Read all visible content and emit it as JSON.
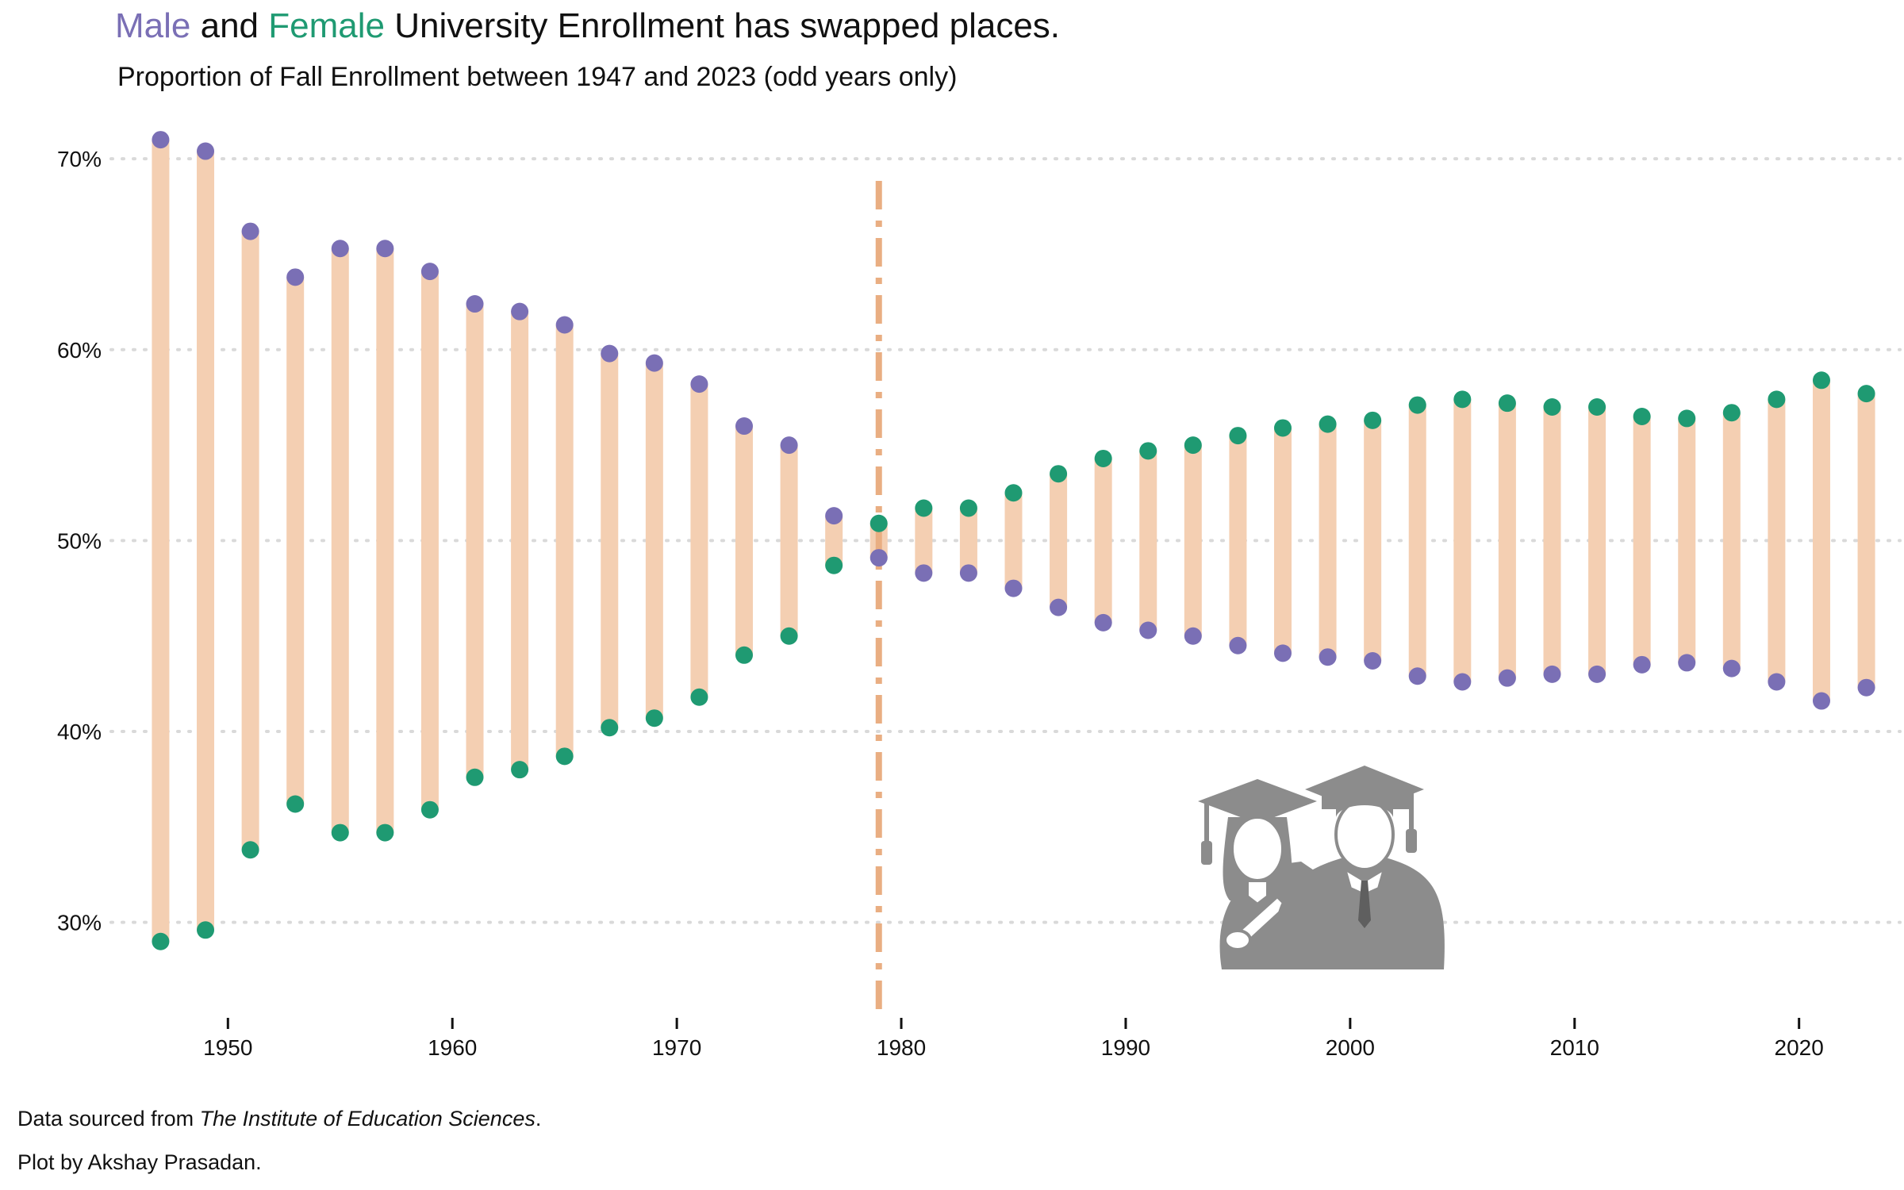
{
  "title": {
    "male_word": "Male",
    "and_word": " and ",
    "female_word": "Female",
    "rest": " University Enrollment has swapped places."
  },
  "subtitle": "Proportion of Fall Enrollment between 1947 and 2023 (odd years only)",
  "caption": {
    "source_prefix": "Data sourced from ",
    "source_name": "The Institute of Education Sciences",
    "source_suffix": ".",
    "credit": "Plot by Akshay Prasadan."
  },
  "colors": {
    "male": "#7a6fb5",
    "female": "#1f9a72",
    "bar": "#f4cfb2",
    "marker_line": "#e9ae82",
    "grid": "#d9d9d9",
    "illustration": "#8c8c8c"
  },
  "illustration_icon": "graduates-icon",
  "chart_data": {
    "type": "dumbbell",
    "x_ticks": [
      1950,
      1960,
      1970,
      1980,
      1990,
      2000,
      2010,
      2020
    ],
    "y_ticks": [
      30,
      40,
      50,
      60,
      70
    ],
    "y_tick_labels": [
      "30%",
      "40%",
      "50%",
      "60%",
      "70%"
    ],
    "xlim": [
      1945.5,
      2024.5
    ],
    "ylim": [
      25,
      72.5
    ],
    "grid": "horizontal dotted",
    "vertical_reference_line": 1979,
    "years": [
      1947,
      1949,
      1951,
      1953,
      1955,
      1957,
      1959,
      1961,
      1963,
      1965,
      1967,
      1969,
      1971,
      1973,
      1975,
      1977,
      1979,
      1981,
      1983,
      1985,
      1987,
      1989,
      1991,
      1993,
      1995,
      1997,
      1999,
      2001,
      2003,
      2005,
      2007,
      2009,
      2011,
      2013,
      2015,
      2017,
      2019,
      2021,
      2023
    ],
    "series": [
      {
        "name": "Male",
        "values": [
          71.0,
          70.4,
          66.2,
          63.8,
          65.3,
          65.3,
          64.1,
          62.4,
          62.0,
          61.3,
          59.8,
          59.3,
          58.2,
          56.0,
          55.0,
          51.3,
          49.1,
          48.3,
          48.3,
          47.5,
          46.5,
          45.7,
          45.3,
          45.0,
          44.5,
          44.1,
          43.9,
          43.7,
          42.9,
          42.6,
          42.8,
          43.0,
          43.0,
          43.5,
          43.6,
          43.3,
          42.6,
          41.6,
          42.3
        ]
      },
      {
        "name": "Female",
        "values": [
          29.0,
          29.6,
          33.8,
          36.2,
          34.7,
          34.7,
          35.9,
          37.6,
          38.0,
          38.7,
          40.2,
          40.7,
          41.8,
          44.0,
          45.0,
          48.7,
          50.9,
          51.7,
          51.7,
          52.5,
          53.5,
          54.3,
          54.7,
          55.0,
          55.5,
          55.9,
          56.1,
          56.3,
          57.1,
          57.4,
          57.2,
          57.0,
          57.0,
          56.5,
          56.4,
          56.7,
          57.4,
          58.4,
          57.7
        ]
      }
    ]
  }
}
